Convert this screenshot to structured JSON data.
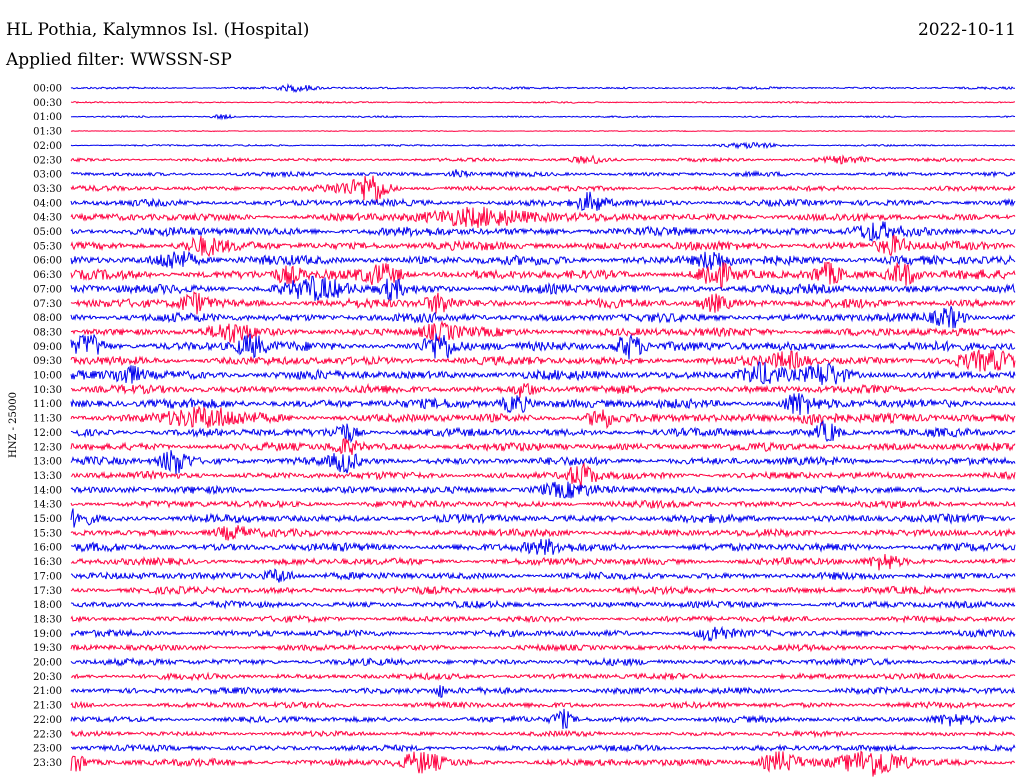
{
  "header": {
    "station": "HL Pothia, Kalymnos Isl. (Hospital)",
    "filter": "Applied filter: WWSSN-SP",
    "date": "2022-10-11"
  },
  "chart_data": {
    "type": "line",
    "title": "HL Pothia, Kalymnos Isl. (Hospital)",
    "subtitle": "Applied filter: WWSSN-SP",
    "date": "2022-10-11",
    "ylabel": "HNZ - 25000",
    "colors": {
      "even": "#0000ee",
      "odd": "#ff0040"
    },
    "rows": [
      {
        "label": "00:00",
        "amp": 1,
        "events": [
          {
            "x": 0.24,
            "a": 3,
            "w": 0.02
          }
        ]
      },
      {
        "label": "00:30",
        "amp": 0.7,
        "events": []
      },
      {
        "label": "01:00",
        "amp": 0.7,
        "events": [
          {
            "x": 0.16,
            "a": 2.5,
            "w": 0.01
          }
        ]
      },
      {
        "label": "01:30",
        "amp": 0.4,
        "events": []
      },
      {
        "label": "02:00",
        "amp": 0.8,
        "events": [
          {
            "x": 0.72,
            "a": 2.5,
            "w": 0.03
          }
        ]
      },
      {
        "label": "02:30",
        "amp": 1.5,
        "events": [
          {
            "x": 0.55,
            "a": 3.5,
            "w": 0.02
          },
          {
            "x": 0.82,
            "a": 3,
            "w": 0.03
          }
        ]
      },
      {
        "label": "03:00",
        "amp": 2,
        "events": [
          {
            "x": 0.41,
            "a": 4,
            "w": 0.01
          }
        ]
      },
      {
        "label": "03:30",
        "amp": 2.3,
        "events": [
          {
            "x": 0.32,
            "a": 12,
            "w": 0.015
          },
          {
            "x": 0.3,
            "a": 5,
            "w": 0.03
          }
        ]
      },
      {
        "label": "04:00",
        "amp": 3,
        "events": [
          {
            "x": 0.55,
            "a": 9,
            "w": 0.015
          }
        ]
      },
      {
        "label": "04:30",
        "amp": 3.5,
        "events": [
          {
            "x": 0.44,
            "a": 8,
            "w": 0.06
          }
        ]
      },
      {
        "label": "05:00",
        "amp": 4,
        "events": [
          {
            "x": 0.85,
            "a": 7,
            "w": 0.02
          }
        ]
      },
      {
        "label": "05:30",
        "amp": 4,
        "events": [
          {
            "x": 0.14,
            "a": 7,
            "w": 0.02
          },
          {
            "x": 0.87,
            "a": 8,
            "w": 0.015
          }
        ]
      },
      {
        "label": "06:00",
        "amp": 4.3,
        "events": [
          {
            "x": 0.11,
            "a": 8,
            "w": 0.02
          },
          {
            "x": 0.68,
            "a": 9,
            "w": 0.015
          }
        ]
      },
      {
        "label": "06:30",
        "amp": 4.3,
        "events": [
          {
            "x": 0.23,
            "a": 7,
            "w": 0.015
          },
          {
            "x": 0.33,
            "a": 9,
            "w": 0.02
          },
          {
            "x": 0.68,
            "a": 13,
            "w": 0.015
          },
          {
            "x": 0.8,
            "a": 9,
            "w": 0.015
          },
          {
            "x": 0.88,
            "a": 12,
            "w": 0.015
          }
        ]
      },
      {
        "label": "07:00",
        "amp": 4.3,
        "events": [
          {
            "x": 0.26,
            "a": 9,
            "w": 0.03
          },
          {
            "x": 0.34,
            "a": 9,
            "w": 0.01
          }
        ]
      },
      {
        "label": "07:30",
        "amp": 4,
        "events": [
          {
            "x": 0.13,
            "a": 9,
            "w": 0.015
          },
          {
            "x": 0.39,
            "a": 9,
            "w": 0.015
          },
          {
            "x": 0.68,
            "a": 7,
            "w": 0.015
          }
        ]
      },
      {
        "label": "08:00",
        "amp": 4,
        "events": [
          {
            "x": 0.93,
            "a": 9,
            "w": 0.015
          }
        ]
      },
      {
        "label": "08:30",
        "amp": 4,
        "events": [
          {
            "x": 0.17,
            "a": 7,
            "w": 0.02
          },
          {
            "x": 0.39,
            "a": 7,
            "w": 0.02
          }
        ]
      },
      {
        "label": "09:00",
        "amp": 4.3,
        "events": [
          {
            "x": 0.02,
            "a": 10,
            "w": 0.015
          },
          {
            "x": 0.19,
            "a": 10,
            "w": 0.015
          },
          {
            "x": 0.39,
            "a": 12,
            "w": 0.015
          },
          {
            "x": 0.59,
            "a": 12,
            "w": 0.015
          }
        ]
      },
      {
        "label": "09:30",
        "amp": 4,
        "events": [
          {
            "x": 0.76,
            "a": 7,
            "w": 0.02
          },
          {
            "x": 0.97,
            "a": 7,
            "w": 0.03
          }
        ]
      },
      {
        "label": "10:00",
        "amp": 4.3,
        "events": [
          {
            "x": 0.06,
            "a": 8,
            "w": 0.015
          },
          {
            "x": 0.73,
            "a": 10,
            "w": 0.02
          },
          {
            "x": 0.8,
            "a": 9,
            "w": 0.02
          }
        ]
      },
      {
        "label": "10:30",
        "amp": 3.7,
        "events": [
          {
            "x": 0.48,
            "a": 7,
            "w": 0.01
          }
        ]
      },
      {
        "label": "11:00",
        "amp": 4.3,
        "events": [
          {
            "x": 0.47,
            "a": 9,
            "w": 0.015
          },
          {
            "x": 0.77,
            "a": 10,
            "w": 0.015
          }
        ]
      },
      {
        "label": "11:30",
        "amp": 4,
        "events": [
          {
            "x": 0.14,
            "a": 9,
            "w": 0.04
          },
          {
            "x": 0.56,
            "a": 10,
            "w": 0.012
          },
          {
            "x": 0.79,
            "a": 7,
            "w": 0.02
          }
        ]
      },
      {
        "label": "12:00",
        "amp": 3.7,
        "events": [
          {
            "x": 0.29,
            "a": 9,
            "w": 0.012
          },
          {
            "x": 0.8,
            "a": 9,
            "w": 0.012
          }
        ]
      },
      {
        "label": "12:30",
        "amp": 3.7,
        "events": [
          {
            "x": 0.29,
            "a": 7,
            "w": 0.015
          }
        ]
      },
      {
        "label": "13:00",
        "amp": 3.7,
        "events": [
          {
            "x": 0.11,
            "a": 12,
            "w": 0.015
          },
          {
            "x": 0.29,
            "a": 9,
            "w": 0.012
          }
        ]
      },
      {
        "label": "13:30",
        "amp": 3.3,
        "events": [
          {
            "x": 0.54,
            "a": 11,
            "w": 0.015
          }
        ]
      },
      {
        "label": "14:00",
        "amp": 3.3,
        "events": [
          {
            "x": 0.52,
            "a": 6,
            "w": 0.03
          }
        ]
      },
      {
        "label": "14:30",
        "amp": 3.3,
        "events": []
      },
      {
        "label": "15:00",
        "amp": 3.7,
        "events": [
          {
            "x": 0.005,
            "a": 7,
            "w": 0.015
          }
        ]
      },
      {
        "label": "15:30",
        "amp": 3.3,
        "events": [
          {
            "x": 0.17,
            "a": 6,
            "w": 0.02
          }
        ]
      },
      {
        "label": "16:00",
        "amp": 3.7,
        "events": [
          {
            "x": 0.5,
            "a": 6,
            "w": 0.02
          }
        ]
      },
      {
        "label": "16:30",
        "amp": 3.3,
        "events": [
          {
            "x": 0.86,
            "a": 7,
            "w": 0.015
          }
        ]
      },
      {
        "label": "17:00",
        "amp": 3.3,
        "events": [
          {
            "x": 0.22,
            "a": 7,
            "w": 0.015
          }
        ]
      },
      {
        "label": "17:30",
        "amp": 3.3,
        "events": []
      },
      {
        "label": "18:00",
        "amp": 3,
        "events": []
      },
      {
        "label": "18:30",
        "amp": 2.7,
        "events": []
      },
      {
        "label": "19:00",
        "amp": 3,
        "events": [
          {
            "x": 0.68,
            "a": 7,
            "w": 0.015
          }
        ]
      },
      {
        "label": "19:30",
        "amp": 2.7,
        "events": []
      },
      {
        "label": "20:00",
        "amp": 3,
        "events": []
      },
      {
        "label": "20:30",
        "amp": 2.7,
        "events": []
      },
      {
        "label": "21:00",
        "amp": 3,
        "events": [
          {
            "x": 0.39,
            "a": 6,
            "w": 0.005
          }
        ]
      },
      {
        "label": "21:30",
        "amp": 2.7,
        "events": []
      },
      {
        "label": "22:00",
        "amp": 2.7,
        "events": [
          {
            "x": 0.52,
            "a": 9,
            "w": 0.01
          },
          {
            "x": 0.93,
            "a": 5,
            "w": 0.02
          }
        ]
      },
      {
        "label": "22:30",
        "amp": 2.3,
        "events": []
      },
      {
        "label": "23:00",
        "amp": 2.7,
        "events": []
      },
      {
        "label": "23:30",
        "amp": 3.3,
        "events": [
          {
            "x": 0.005,
            "a": 9,
            "w": 0.01
          },
          {
            "x": 0.37,
            "a": 9,
            "w": 0.02
          },
          {
            "x": 0.75,
            "a": 10,
            "w": 0.02
          },
          {
            "x": 0.85,
            "a": 13,
            "w": 0.03
          }
        ]
      }
    ]
  }
}
